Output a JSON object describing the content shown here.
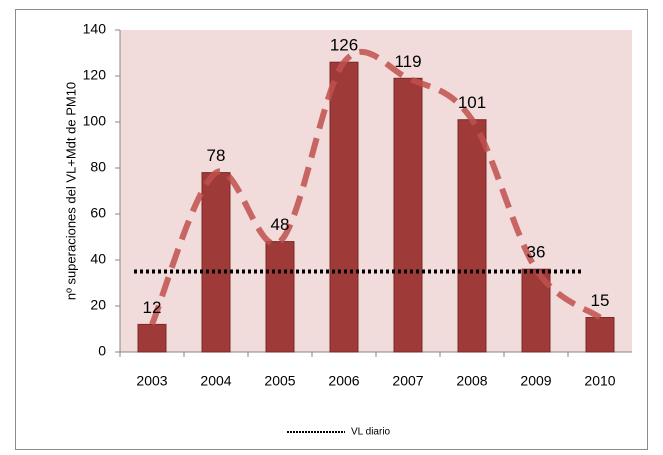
{
  "chart_data": {
    "type": "bar",
    "y_label": "nº superaciones del VL+Mdt de PM10",
    "categories": [
      "2003",
      "2004",
      "2005",
      "2006",
      "2007",
      "2008",
      "2009",
      "2010"
    ],
    "values": [
      12,
      78,
      48,
      126,
      119,
      101,
      36,
      15
    ],
    "color": "#9e3a38",
    "trend_color": "#c0504d",
    "reference": {
      "name": "VL diario",
      "value": 35,
      "color": "#000000"
    },
    "ylim": [
      0,
      140
    ],
    "yticks": [
      0,
      20,
      40,
      60,
      80,
      100,
      120,
      140
    ],
    "plot_background": "#f2dcdb"
  }
}
